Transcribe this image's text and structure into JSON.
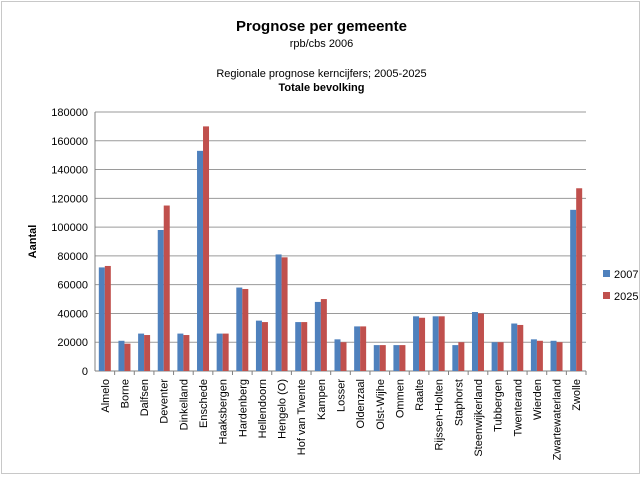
{
  "chart_data": {
    "type": "bar",
    "title": "Prognose per gemeente",
    "subtitle": "rpb/cbs 2006",
    "title2": "Regionale prognose kerncijfers; 2005-2025",
    "title3": "Totale bevolking",
    "ylabel": "Aantal",
    "ylim": [
      0,
      180000
    ],
    "yticks": [
      0,
      20000,
      40000,
      60000,
      80000,
      100000,
      120000,
      140000,
      160000,
      180000
    ],
    "legend_position": "right",
    "grid": "horizontal",
    "categories": [
      "Almelo",
      "Borne",
      "Dalfsen",
      "Deventer",
      "Dinkelland",
      "Enschede",
      "Haaksbergen",
      "Hardenberg",
      "Hellendoorn",
      "Hengelo (O)",
      "Hof van Twente",
      "Kampen",
      "Losser",
      "Oldenzaal",
      "Olst-Wijhe",
      "Ommen",
      "Raalte",
      "Rijssen-Holten",
      "Staphorst",
      "Steenwijkerland",
      "Tubbergen",
      "Twenterand",
      "Wierden",
      "Zwartewaterland",
      "Zwolle"
    ],
    "series": [
      {
        "name": "2007",
        "color": "#4f81bd",
        "values": [
          72000,
          21000,
          26000,
          98000,
          26000,
          153000,
          26000,
          58000,
          35000,
          81000,
          34000,
          48000,
          22000,
          31000,
          18000,
          18000,
          38000,
          38000,
          18000,
          41000,
          20000,
          33000,
          22000,
          21000,
          112000
        ]
      },
      {
        "name": "2025",
        "color": "#c0504d",
        "values": [
          73000,
          19000,
          25000,
          115000,
          25000,
          170000,
          26000,
          57000,
          34000,
          79000,
          34000,
          50000,
          20000,
          31000,
          18000,
          18000,
          37000,
          38000,
          20000,
          40000,
          20000,
          32000,
          21000,
          20000,
          127000
        ]
      }
    ]
  }
}
